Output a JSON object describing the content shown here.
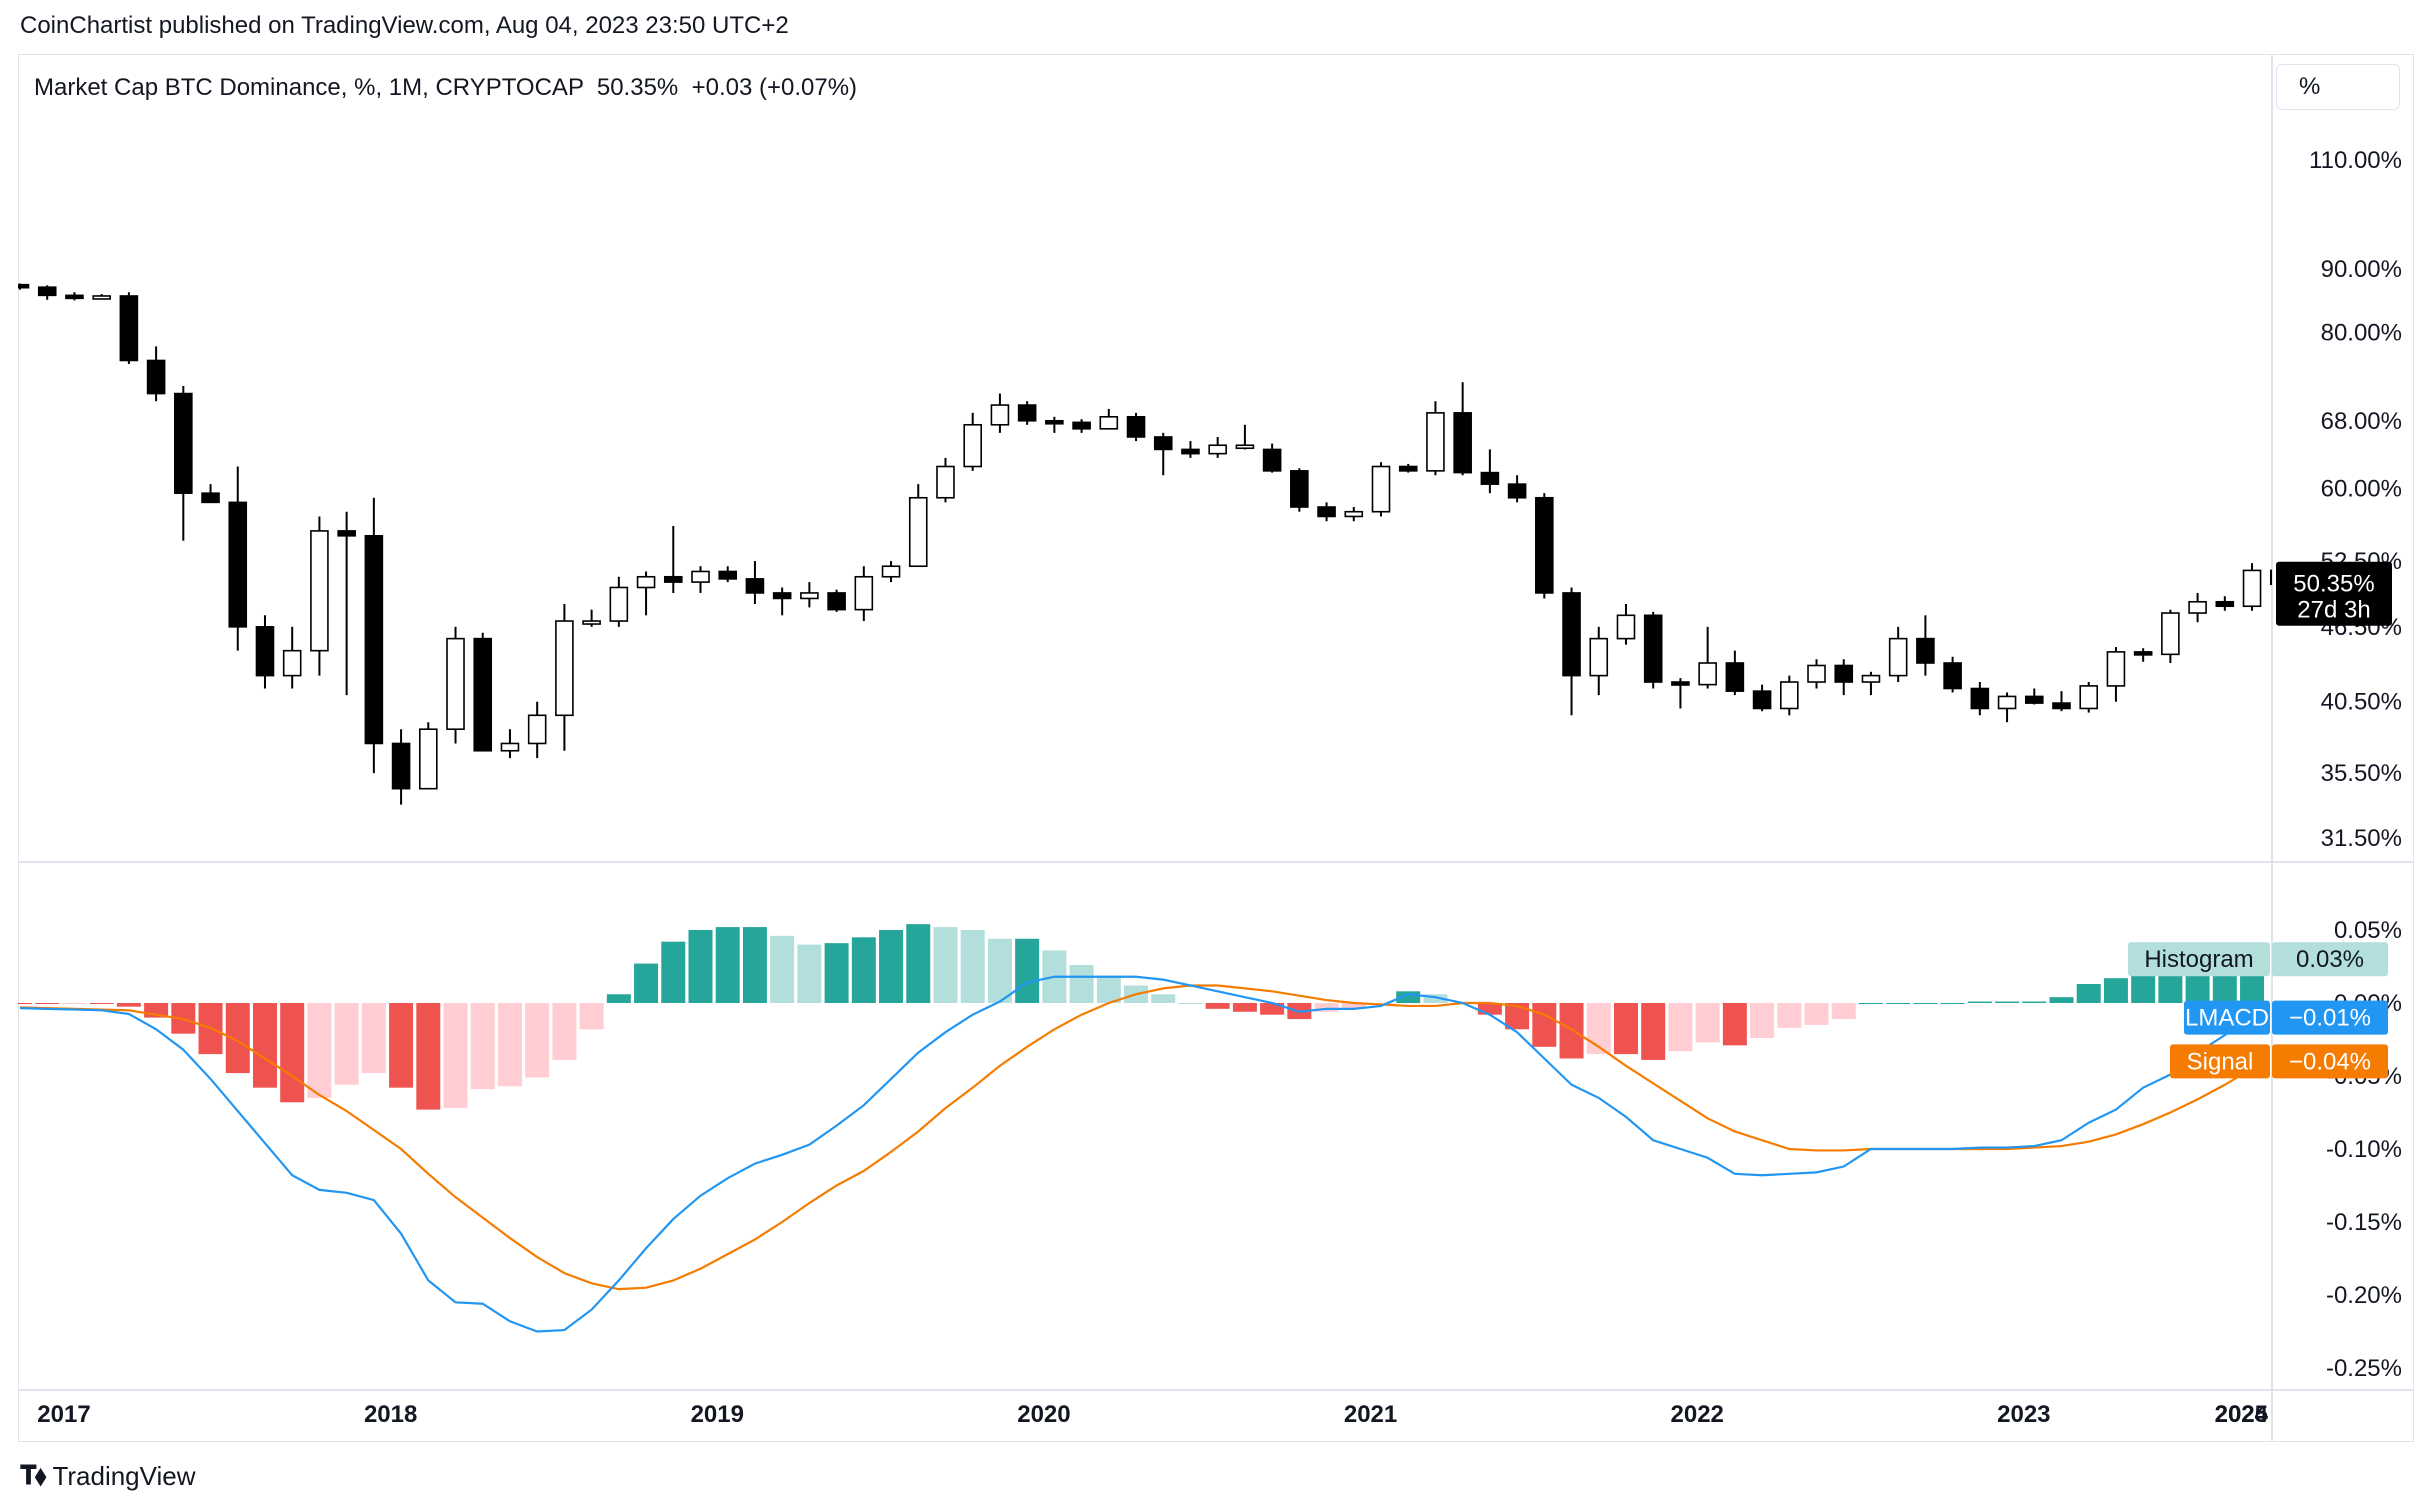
{
  "header": {
    "published": "CoinChartist published on TradingView.com, Aug 04, 2023 23:50 UTC+2"
  },
  "legend": {
    "text": "Market Cap BTC Dominance, %, 1M, CRYPTOCAP  50.35%  +0.03 (+0.07%)"
  },
  "scale_button": "%",
  "footer": {
    "brand": "TradingView"
  },
  "colors": {
    "up": "#ffffff",
    "down": "#000000",
    "lmacd": "#2196f3",
    "signal": "#f57c00",
    "hist_pos_strong": "#26a69a",
    "hist_pos_weak": "#b2dfdb",
    "hist_neg_strong": "#ef5350",
    "hist_neg_weak": "#ffcdd2"
  },
  "chart_data": {
    "type": "candlestick",
    "title": "Market Cap BTC Dominance",
    "interval": "1M",
    "source": "CRYPTOCAP",
    "y_scale": "log",
    "price_ticks": [
      "110.00%",
      "90.00%",
      "80.00%",
      "68.00%",
      "60.00%",
      "52.50%",
      "46.50%",
      "40.50%",
      "35.50%",
      "31.50%"
    ],
    "price_tick_values": [
      110,
      90,
      80,
      68,
      60,
      52.5,
      46.5,
      40.5,
      35.5,
      31.5
    ],
    "last_price_label": "50.35%",
    "last_price_value": 50.35,
    "countdown_label": "27d 3h",
    "x_ticks": [
      "2017",
      "2018",
      "2019",
      "2020",
      "2021",
      "2022",
      "2023",
      "2024",
      "2025"
    ],
    "candles": [
      {
        "t": "2017-01",
        "o": 87.4,
        "h": 87.6,
        "l": 86.6,
        "c": 87.0
      },
      {
        "t": "2017-02",
        "o": 87.0,
        "h": 87.3,
        "l": 85.0,
        "c": 85.7
      },
      {
        "t": "2017-03",
        "o": 85.7,
        "h": 86.2,
        "l": 84.9,
        "c": 85.4
      },
      {
        "t": "2017-04",
        "o": 85.4,
        "h": 85.9,
        "l": 85.2,
        "c": 85.6
      },
      {
        "t": "2017-05",
        "o": 85.6,
        "h": 86.2,
        "l": 75.5,
        "c": 76.0
      },
      {
        "t": "2017-06",
        "o": 76.0,
        "h": 78.0,
        "l": 70.5,
        "c": 71.5
      },
      {
        "t": "2017-07",
        "o": 71.5,
        "h": 72.5,
        "l": 54.5,
        "c": 59.5
      },
      {
        "t": "2017-08",
        "o": 59.5,
        "h": 60.5,
        "l": 58.5,
        "c": 58.5
      },
      {
        "t": "2017-09",
        "o": 58.5,
        "h": 62.5,
        "l": 44.5,
        "c": 46.5
      },
      {
        "t": "2017-10",
        "o": 46.5,
        "h": 47.5,
        "l": 41.5,
        "c": 42.5
      },
      {
        "t": "2017-11",
        "o": 42.5,
        "h": 46.5,
        "l": 41.5,
        "c": 44.5
      },
      {
        "t": "2017-12",
        "o": 44.5,
        "h": 57.0,
        "l": 42.5,
        "c": 55.5
      },
      {
        "t": "2018-01",
        "o": 55.5,
        "h": 57.5,
        "l": 41.0,
        "c": 55.0
      },
      {
        "t": "2018-02",
        "o": 55.0,
        "h": 59.0,
        "l": 35.5,
        "c": 37.5
      },
      {
        "t": "2018-03",
        "o": 37.5,
        "h": 38.5,
        "l": 33.5,
        "c": 34.5
      },
      {
        "t": "2018-04",
        "o": 34.5,
        "h": 39.0,
        "l": 34.5,
        "c": 38.5
      },
      {
        "t": "2018-05",
        "o": 38.5,
        "h": 46.5,
        "l": 37.5,
        "c": 45.5
      },
      {
        "t": "2018-06",
        "o": 45.5,
        "h": 46.0,
        "l": 37.0,
        "c": 37.0
      },
      {
        "t": "2018-07",
        "o": 37.0,
        "h": 38.5,
        "l": 36.5,
        "c": 37.5
      },
      {
        "t": "2018-08",
        "o": 37.5,
        "h": 40.5,
        "l": 36.5,
        "c": 39.5
      },
      {
        "t": "2018-09",
        "o": 39.5,
        "h": 48.5,
        "l": 37.0,
        "c": 47.0
      },
      {
        "t": "2018-10",
        "o": 47.0,
        "h": 48.0,
        "l": 46.5,
        "c": 47.0
      },
      {
        "t": "2018-11",
        "o": 47.0,
        "h": 51.0,
        "l": 46.5,
        "c": 50.0
      },
      {
        "t": "2018-12",
        "o": 50.0,
        "h": 51.5,
        "l": 47.5,
        "c": 51.0
      },
      {
        "t": "2019-01",
        "o": 51.0,
        "h": 56.0,
        "l": 49.5,
        "c": 50.5
      },
      {
        "t": "2019-02",
        "o": 50.5,
        "h": 52.0,
        "l": 49.5,
        "c": 51.5
      },
      {
        "t": "2019-03",
        "o": 51.5,
        "h": 52.0,
        "l": 50.5,
        "c": 50.8
      },
      {
        "t": "2019-04",
        "o": 50.8,
        "h": 52.5,
        "l": 48.5,
        "c": 49.5
      },
      {
        "t": "2019-05",
        "o": 49.5,
        "h": 50.0,
        "l": 47.5,
        "c": 49.0
      },
      {
        "t": "2019-06",
        "o": 49.0,
        "h": 50.5,
        "l": 48.2,
        "c": 49.5
      },
      {
        "t": "2019-07",
        "o": 49.5,
        "h": 49.8,
        "l": 47.8,
        "c": 48.0
      },
      {
        "t": "2019-08",
        "o": 48.0,
        "h": 52.0,
        "l": 47.0,
        "c": 51.0
      },
      {
        "t": "2019-09",
        "o": 51.0,
        "h": 52.5,
        "l": 50.5,
        "c": 52.0
      },
      {
        "t": "2019-10",
        "o": 52.0,
        "h": 60.5,
        "l": 52.0,
        "c": 59.0
      },
      {
        "t": "2019-11",
        "o": 59.0,
        "h": 63.5,
        "l": 58.5,
        "c": 62.5
      },
      {
        "t": "2019-12",
        "o": 62.5,
        "h": 69.0,
        "l": 62.0,
        "c": 67.5
      },
      {
        "t": "2020-01",
        "o": 67.5,
        "h": 71.5,
        "l": 66.5,
        "c": 70.0
      },
      {
        "t": "2020-02",
        "o": 70.0,
        "h": 70.5,
        "l": 67.5,
        "c": 68.0
      },
      {
        "t": "2020-03",
        "o": 68.0,
        "h": 68.5,
        "l": 66.5,
        "c": 67.8
      },
      {
        "t": "2020-04",
        "o": 67.8,
        "h": 68.2,
        "l": 66.5,
        "c": 67.0
      },
      {
        "t": "2020-05",
        "o": 67.0,
        "h": 69.5,
        "l": 67.0,
        "c": 68.5
      },
      {
        "t": "2020-06",
        "o": 68.5,
        "h": 69.0,
        "l": 65.5,
        "c": 66.0
      },
      {
        "t": "2020-07",
        "o": 66.0,
        "h": 66.5,
        "l": 61.5,
        "c": 64.5
      },
      {
        "t": "2020-08",
        "o": 64.5,
        "h": 65.5,
        "l": 63.5,
        "c": 64.0
      },
      {
        "t": "2020-09",
        "o": 64.0,
        "h": 66.0,
        "l": 63.5,
        "c": 65.0
      },
      {
        "t": "2020-10",
        "o": 65.0,
        "h": 67.5,
        "l": 64.5,
        "c": 65.0
      },
      {
        "t": "2020-11",
        "o": 64.5,
        "h": 65.2,
        "l": 61.8,
        "c": 62.0
      },
      {
        "t": "2020-12",
        "o": 62.0,
        "h": 62.3,
        "l": 57.5,
        "c": 58.0
      },
      {
        "t": "2021-01",
        "o": 58.0,
        "h": 58.5,
        "l": 56.5,
        "c": 57.0
      },
      {
        "t": "2021-02",
        "o": 57.0,
        "h": 58.0,
        "l": 56.5,
        "c": 57.5
      },
      {
        "t": "2021-03",
        "o": 57.5,
        "h": 63.0,
        "l": 57.0,
        "c": 62.5
      },
      {
        "t": "2021-04",
        "o": 62.5,
        "h": 62.8,
        "l": 61.8,
        "c": 62.0
      },
      {
        "t": "2021-05",
        "o": 62.0,
        "h": 70.5,
        "l": 61.5,
        "c": 69.0
      },
      {
        "t": "2021-06",
        "o": 69.0,
        "h": 73.0,
        "l": 61.5,
        "c": 61.8
      },
      {
        "t": "2021-07",
        "o": 61.8,
        "h": 64.5,
        "l": 59.5,
        "c": 60.5
      },
      {
        "t": "2021-08",
        "o": 60.5,
        "h": 61.5,
        "l": 58.5,
        "c": 59.0
      },
      {
        "t": "2021-09",
        "o": 59.0,
        "h": 59.5,
        "l": 49.0,
        "c": 49.5
      },
      {
        "t": "2021-10",
        "o": 49.5,
        "h": 50.0,
        "l": 39.5,
        "c": 42.5
      },
      {
        "t": "2021-11",
        "o": 42.5,
        "h": 46.5,
        "l": 41.0,
        "c": 45.5
      },
      {
        "t": "2021-12",
        "o": 45.5,
        "h": 48.5,
        "l": 45.0,
        "c": 47.5
      },
      {
        "t": "2022-01",
        "o": 47.5,
        "h": 47.8,
        "l": 41.5,
        "c": 42.0
      },
      {
        "t": "2022-02",
        "o": 42.0,
        "h": 42.3,
        "l": 40.0,
        "c": 41.8
      },
      {
        "t": "2022-03",
        "o": 41.8,
        "h": 46.5,
        "l": 41.5,
        "c": 43.5
      },
      {
        "t": "2022-04",
        "o": 43.5,
        "h": 44.5,
        "l": 41.0,
        "c": 41.3
      },
      {
        "t": "2022-05",
        "o": 41.3,
        "h": 41.8,
        "l": 39.8,
        "c": 40.0
      },
      {
        "t": "2022-06",
        "o": 40.0,
        "h": 42.5,
        "l": 39.5,
        "c": 42.0
      },
      {
        "t": "2022-07",
        "o": 42.0,
        "h": 43.8,
        "l": 41.5,
        "c": 43.3
      },
      {
        "t": "2022-08",
        "o": 43.3,
        "h": 43.8,
        "l": 41.0,
        "c": 42.0
      },
      {
        "t": "2022-09",
        "o": 42.0,
        "h": 42.8,
        "l": 41.0,
        "c": 42.5
      },
      {
        "t": "2022-10",
        "o": 42.5,
        "h": 46.5,
        "l": 42.0,
        "c": 45.5
      },
      {
        "t": "2022-11",
        "o": 45.5,
        "h": 47.5,
        "l": 42.5,
        "c": 43.5
      },
      {
        "t": "2022-12",
        "o": 43.5,
        "h": 44.0,
        "l": 41.2,
        "c": 41.5
      },
      {
        "t": "2023-01",
        "o": 41.5,
        "h": 42.0,
        "l": 39.5,
        "c": 40.0
      },
      {
        "t": "2023-02",
        "o": 40.0,
        "h": 41.2,
        "l": 39.0,
        "c": 40.9
      },
      {
        "t": "2023-03",
        "o": 40.9,
        "h": 41.5,
        "l": 40.3,
        "c": 40.4
      },
      {
        "t": "2023-04",
        "o": 40.4,
        "h": 41.3,
        "l": 39.8,
        "c": 40.0
      },
      {
        "t": "2023-05",
        "o": 40.0,
        "h": 42.0,
        "l": 39.7,
        "c": 41.7
      },
      {
        "t": "2023-06",
        "o": 41.7,
        "h": 44.8,
        "l": 40.5,
        "c": 44.4
      },
      {
        "t": "2023-07",
        "o": 44.4,
        "h": 44.7,
        "l": 43.6,
        "c": 44.2
      },
      {
        "t": "2023-08",
        "o": 44.2,
        "h": 48.0,
        "l": 43.5,
        "c": 47.7
      },
      {
        "t": "2023-09",
        "o": 47.7,
        "h": 49.5,
        "l": 46.9,
        "c": 48.7
      },
      {
        "t": "2023-10",
        "o": 48.7,
        "h": 49.2,
        "l": 47.9,
        "c": 48.3
      },
      {
        "t": "2023-11",
        "o": 48.3,
        "h": 52.3,
        "l": 47.9,
        "c": 51.6
      },
      {
        "t": "2023-12",
        "o": 51.6,
        "h": 52.0,
        "l": 50.0,
        "c": 50.3
      },
      {
        "t": "2024-01",
        "o": 50.32,
        "h": 50.55,
        "l": 50.1,
        "c": 50.35
      }
    ],
    "indicator": {
      "name": "LMACD",
      "value_ticks": [
        "0.05%",
        "0.00%",
        "-0.05%",
        "-0.10%",
        "-0.15%",
        "-0.20%",
        "-0.25%"
      ],
      "value_tick_values": [
        0.05,
        0.0,
        -0.05,
        -0.1,
        -0.15,
        -0.2,
        -0.25
      ],
      "labels": [
        {
          "name": "Histogram",
          "value": "0.03%",
          "color": "#b2dfdb",
          "text": "#131722",
          "v": 0.03
        },
        {
          "name": "LMACD",
          "value": "−0.01%",
          "color": "#2196f3",
          "text": "#ffffff",
          "v": -0.01
        },
        {
          "name": "Signal",
          "value": "−0.04%",
          "color": "#f57c00",
          "text": "#ffffff",
          "v": -0.04
        }
      ],
      "lmacd": [
        -0.0035,
        -0.004,
        -0.0045,
        -0.005,
        -0.0075,
        -0.018,
        -0.032,
        -0.052,
        -0.074,
        -0.096,
        -0.118,
        -0.128,
        -0.13,
        -0.135,
        -0.158,
        -0.19,
        -0.205,
        -0.206,
        -0.218,
        -0.225,
        -0.224,
        -0.21,
        -0.19,
        -0.168,
        -0.148,
        -0.132,
        -0.12,
        -0.11,
        -0.104,
        -0.097,
        -0.084,
        -0.07,
        -0.052,
        -0.034,
        -0.02,
        -0.008,
        0.001,
        0.014,
        0.018,
        0.018,
        0.018,
        0.018,
        0.016,
        0.012,
        0.008,
        0.004,
        0.0,
        -0.006,
        -0.004,
        -0.004,
        -0.002,
        0.006,
        0.004,
        0.0,
        -0.008,
        -0.02,
        -0.038,
        -0.056,
        -0.065,
        -0.078,
        -0.094,
        -0.1,
        -0.106,
        -0.117,
        -0.118,
        -0.117,
        -0.116,
        -0.112,
        -0.1,
        -0.1,
        -0.1,
        -0.1,
        -0.099,
        -0.099,
        -0.098,
        -0.094,
        -0.082,
        -0.073,
        -0.058,
        -0.049,
        -0.034,
        -0.022,
        -0.01
      ],
      "signal": [
        -0.003,
        -0.0035,
        -0.004,
        -0.0045,
        -0.005,
        -0.008,
        -0.011,
        -0.017,
        -0.026,
        -0.038,
        -0.05,
        -0.063,
        -0.074,
        -0.087,
        -0.1,
        -0.117,
        -0.133,
        -0.147,
        -0.161,
        -0.174,
        -0.185,
        -0.192,
        -0.196,
        -0.195,
        -0.19,
        -0.182,
        -0.172,
        -0.162,
        -0.15,
        -0.137,
        -0.125,
        -0.115,
        -0.102,
        -0.088,
        -0.072,
        -0.058,
        -0.043,
        -0.03,
        -0.018,
        -0.008,
        0.0,
        0.006,
        0.01,
        0.012,
        0.012,
        0.01,
        0.008,
        0.005,
        0.002,
        0.0,
        -0.001,
        -0.002,
        -0.002,
        0.0,
        0.0,
        -0.002,
        -0.008,
        -0.018,
        -0.03,
        -0.043,
        -0.055,
        -0.067,
        -0.079,
        -0.088,
        -0.094,
        -0.1,
        -0.101,
        -0.101,
        -0.1,
        -0.1,
        -0.1,
        -0.1,
        -0.1,
        -0.1,
        -0.099,
        -0.098,
        -0.095,
        -0.09,
        -0.083,
        -0.075,
        -0.066,
        -0.056,
        -0.045
      ]
    }
  }
}
